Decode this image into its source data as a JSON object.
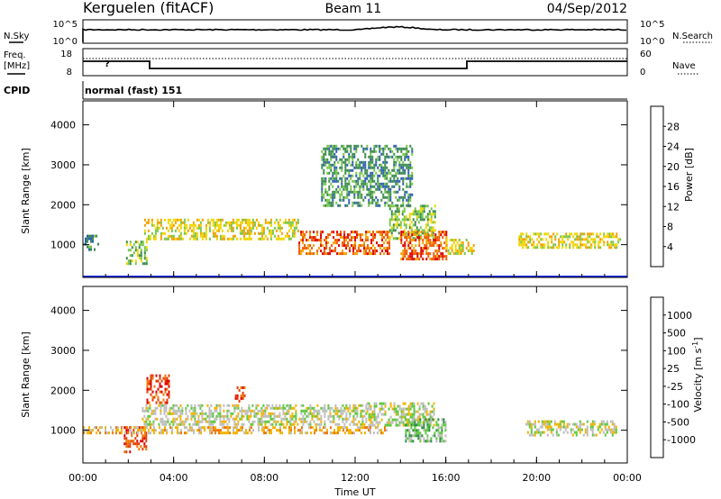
{
  "header": {
    "station": "Kerguelen (fitACF)",
    "beam": "Beam 11",
    "date": "04/Sep/2012"
  },
  "noise_panel": {
    "left_label": "N.Sky",
    "right_label": "N.Search",
    "ticks_left": [
      "10^5",
      "10^0"
    ],
    "ticks_right": [
      "10^5",
      "10^0"
    ]
  },
  "freq_panel": {
    "left_label_line1": "Freq.",
    "left_label_line2": "[MHz]",
    "right_label": "Nave",
    "ticks_left": [
      "18",
      "8"
    ],
    "ticks_right": [
      "60",
      "0"
    ],
    "freq_mark": "?"
  },
  "cpid": {
    "label": "CPID",
    "value": "normal (fast) 151"
  },
  "time_ticks": [
    "00:00",
    "04:00",
    "08:00",
    "12:00",
    "16:00",
    "20:00",
    "00:00"
  ],
  "chart_data": [
    {
      "type": "heatmap",
      "name": "Power",
      "xlabel": "Time UT",
      "ylabel": "Slant Range [km]",
      "x_range_hours": [
        0,
        24
      ],
      "ylim": [
        180,
        4600
      ],
      "yticks": [
        "1000",
        "2000",
        "3000",
        "4000"
      ],
      "colorbar": {
        "label": "Power [dB]",
        "ticks": [
          "4",
          "8",
          "12",
          "16",
          "20",
          "24",
          "28"
        ],
        "colors": [
          "#1428e6",
          "#2f5fb2",
          "#3c8c50",
          "#7ac84a",
          "#f0d600",
          "#f4a000",
          "#ee5a00",
          "#dc0000"
        ]
      },
      "echo_regions": [
        {
          "t": [
            0.0,
            0.7
          ],
          "r": [
            900,
            1250
          ],
          "level": 2
        },
        {
          "t": [
            1.9,
            2.8
          ],
          "r": [
            500,
            1100
          ],
          "level": 3
        },
        {
          "t": [
            2.7,
            9.5
          ],
          "r": [
            1150,
            1650
          ],
          "level": 4
        },
        {
          "t": [
            9.5,
            13.5
          ],
          "r": [
            750,
            1350
          ],
          "level": 6
        },
        {
          "t": [
            13.5,
            15.5
          ],
          "r": [
            1150,
            2000
          ],
          "level": 3
        },
        {
          "t": [
            14.0,
            16.0
          ],
          "r": [
            650,
            1350
          ],
          "level": 6
        },
        {
          "t": [
            16.0,
            17.2
          ],
          "r": [
            750,
            1150
          ],
          "level": 4
        },
        {
          "t": [
            19.2,
            23.7
          ],
          "r": [
            900,
            1300
          ],
          "level": 4
        },
        {
          "t": [
            10.5,
            14.5
          ],
          "r": [
            2000,
            3500
          ],
          "level": 2
        }
      ]
    },
    {
      "type": "heatmap",
      "name": "Velocity",
      "xlabel": "Time UT",
      "ylabel": "Slant Range [km]",
      "x_range_hours": [
        0,
        24
      ],
      "ylim": [
        180,
        4600
      ],
      "yticks": [
        "1000",
        "2000",
        "3000",
        "4000"
      ],
      "colorbar": {
        "label": "Velocity [m s^-1]",
        "ticks": [
          "1000",
          "500",
          "100",
          "25",
          "-25",
          "-100",
          "-500",
          "-1000"
        ],
        "colors": [
          "#1a3fb4",
          "#2e78b0",
          "#2f8c46",
          "#5ec83c",
          "#bebebe",
          "#f0b400",
          "#f07800",
          "#e63c00",
          "#dc0000"
        ]
      },
      "echo_regions": [
        {
          "t": [
            1.8,
            2.8
          ],
          "r": [
            450,
            1100
          ],
          "level": 7
        },
        {
          "t": [
            2.6,
            12.5
          ],
          "r": [
            1150,
            1650
          ],
          "level": 4
        },
        {
          "t": [
            2.8,
            3.8
          ],
          "r": [
            1700,
            2400
          ],
          "level": 7
        },
        {
          "t": [
            6.7,
            7.1
          ],
          "r": [
            1750,
            2100
          ],
          "level": 7
        },
        {
          "t": [
            12.5,
            15.5
          ],
          "r": [
            1100,
            1700
          ],
          "level": 4
        },
        {
          "t": [
            14.2,
            16.0
          ],
          "r": [
            700,
            1300
          ],
          "level": 3
        },
        {
          "t": [
            19.5,
            23.5
          ],
          "r": [
            900,
            1250
          ],
          "level": 4
        },
        {
          "t": [
            0.0,
            13.5
          ],
          "r": [
            950,
            1100
          ],
          "level": 5
        }
      ]
    }
  ]
}
